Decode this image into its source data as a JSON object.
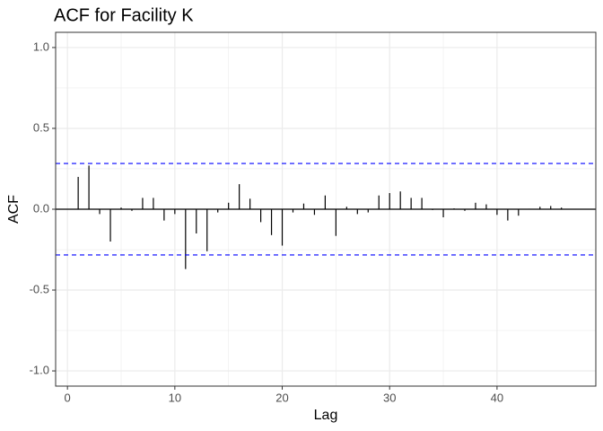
{
  "chart_data": {
    "type": "acf",
    "title": "ACF for Facility K",
    "x_label": "Lag",
    "y_label": "ACF",
    "x": [
      1,
      2,
      3,
      4,
      5,
      6,
      7,
      8,
      9,
      10,
      11,
      12,
      13,
      14,
      15,
      16,
      17,
      18,
      19,
      20,
      21,
      22,
      23,
      24,
      25,
      26,
      27,
      28,
      29,
      30,
      31,
      32,
      33,
      34,
      35,
      36,
      37,
      38,
      39,
      40,
      41,
      42,
      43,
      44,
      45,
      46
    ],
    "values": [
      0.2,
      0.27,
      -0.03,
      -0.2,
      0.01,
      -0.01,
      0.07,
      0.07,
      -0.07,
      -0.03,
      -0.37,
      -0.15,
      -0.26,
      -0.02,
      0.04,
      0.155,
      0.065,
      -0.08,
      -0.16,
      -0.225,
      -0.02,
      0.035,
      -0.035,
      0.085,
      -0.165,
      0.015,
      -0.03,
      -0.02,
      0.085,
      0.1,
      0.11,
      0.07,
      0.07,
      -0.005,
      -0.05,
      0.005,
      -0.01,
      0.04,
      0.03,
      -0.035,
      -0.07,
      -0.04,
      0.003,
      0.015,
      0.02,
      0.01
    ],
    "color": "#000000",
    "conf_limits": [
      0.283,
      -0.283
    ],
    "conf_color": "#0000ff",
    "xlim": [
      -1.1,
      49.2
    ],
    "ylim": [
      -1.094,
      1.094
    ],
    "xticks": [
      0,
      10,
      20,
      30,
      40
    ],
    "yticks": [
      {
        "value": -1,
        "label": "-1.0"
      },
      -0.5,
      {
        "value": 0,
        "label": "0.0"
      },
      0.5,
      {
        "value": 1,
        "label": "1.0"
      }
    ],
    "grid": true
  }
}
